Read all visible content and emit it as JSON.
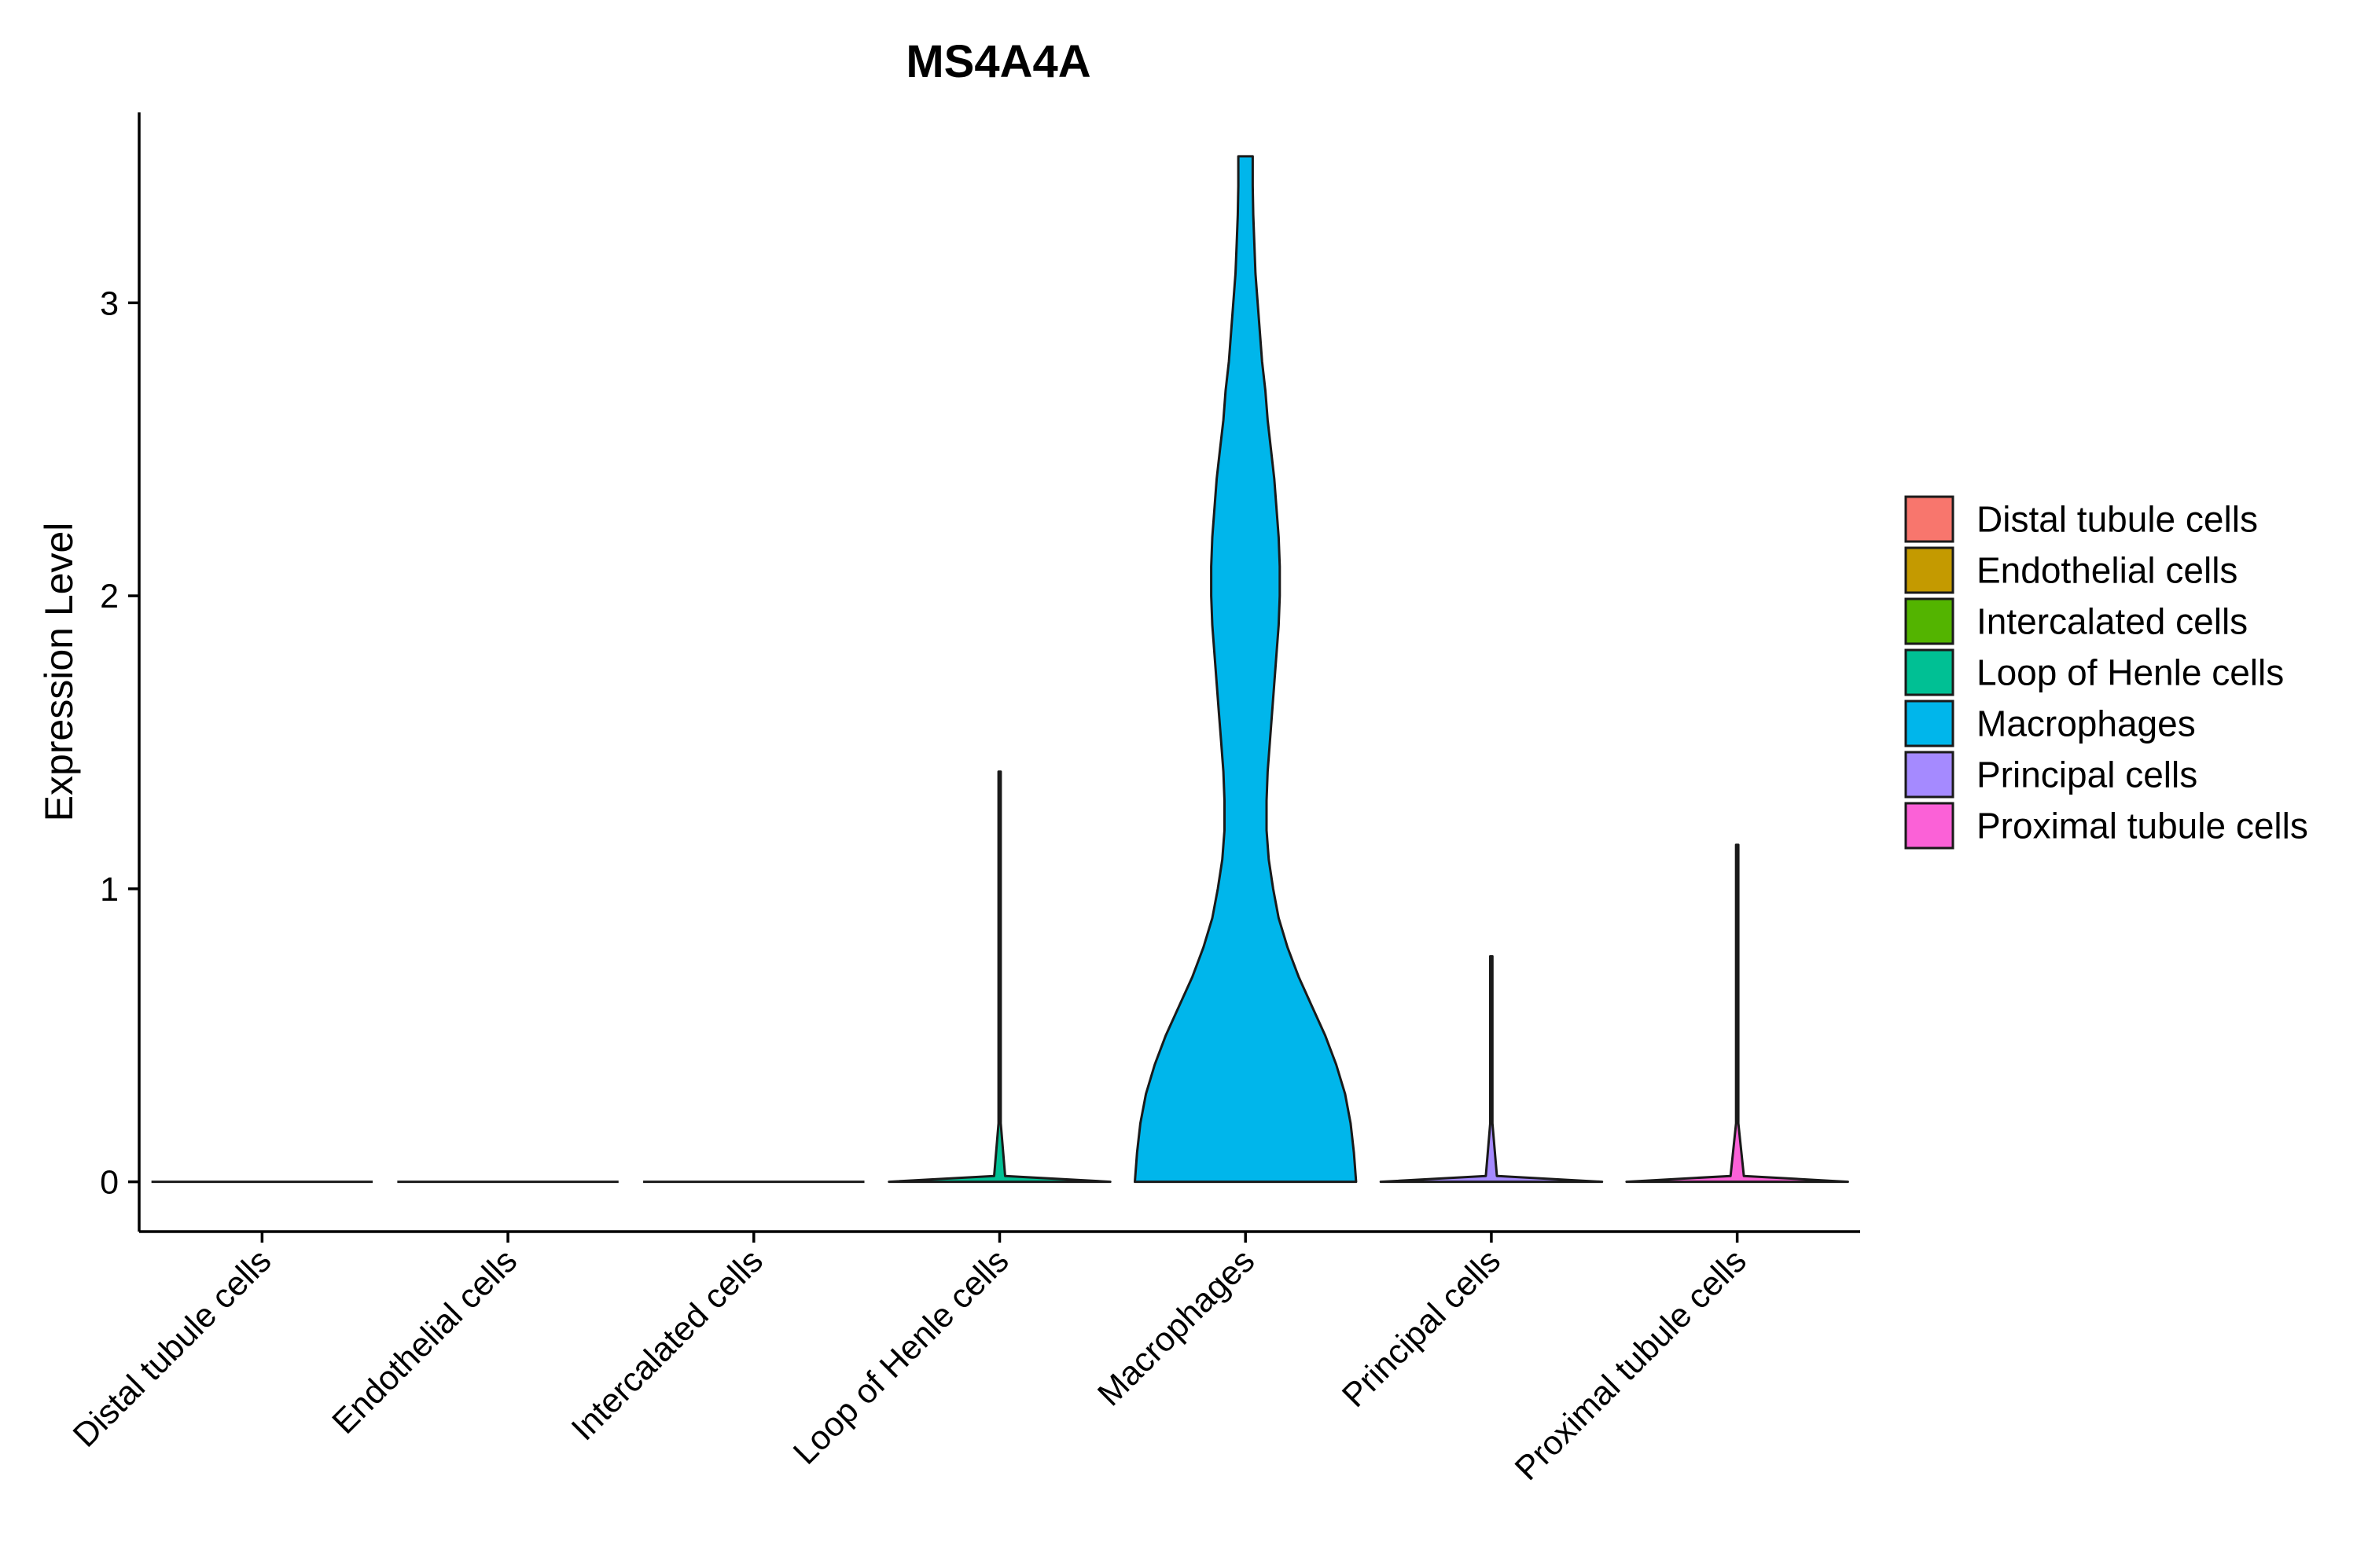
{
  "chart_data": {
    "type": "violin",
    "title": "MS4A4A",
    "xlabel": "",
    "ylabel": "Expression Level",
    "ylim": [
      -0.17,
      3.65
    ],
    "yticks": [
      0,
      1,
      2,
      3
    ],
    "yticklabels": [
      "0",
      "1",
      "2",
      "3"
    ],
    "grid": false,
    "legend_position": "right",
    "categories": [
      "Distal tubule cells",
      "Endothelial cells",
      "Intercalated cells",
      "Loop of Henle cells",
      "Macrophages",
      "Principal cells",
      "Proximal tubule cells"
    ],
    "colors": [
      "#F8766D",
      "#C49A00",
      "#53B400",
      "#00C094",
      "#00B6EB",
      "#A58AFF",
      "#FB61D7"
    ],
    "series": [
      {
        "category": "Distal tubule cells",
        "max": 0.0,
        "profile": [
          [
            0,
            1.0
          ]
        ]
      },
      {
        "category": "Endothelial cells",
        "max": 0.0,
        "profile": [
          [
            0,
            1.0
          ]
        ]
      },
      {
        "category": "Intercalated cells",
        "max": 0.0,
        "profile": [
          [
            0,
            1.0
          ]
        ]
      },
      {
        "category": "Loop of Henle cells",
        "max": 1.4,
        "profile": [
          [
            0,
            1.0
          ],
          [
            0.02,
            0.05
          ],
          [
            0.2,
            0.01
          ],
          [
            1.4,
            0.01
          ]
        ]
      },
      {
        "category": "Macrophages",
        "max": 3.5,
        "profile": [
          [
            0.0,
            1.0
          ],
          [
            0.1,
            0.98
          ],
          [
            0.2,
            0.95
          ],
          [
            0.3,
            0.9
          ],
          [
            0.4,
            0.82
          ],
          [
            0.5,
            0.72
          ],
          [
            0.6,
            0.6
          ],
          [
            0.7,
            0.48
          ],
          [
            0.8,
            0.38
          ],
          [
            0.9,
            0.3
          ],
          [
            1.0,
            0.25
          ],
          [
            1.1,
            0.21
          ],
          [
            1.2,
            0.19
          ],
          [
            1.3,
            0.19
          ],
          [
            1.4,
            0.2
          ],
          [
            1.5,
            0.22
          ],
          [
            1.6,
            0.24
          ],
          [
            1.7,
            0.26
          ],
          [
            1.8,
            0.28
          ],
          [
            1.9,
            0.3
          ],
          [
            2.0,
            0.31
          ],
          [
            2.1,
            0.31
          ],
          [
            2.2,
            0.3
          ],
          [
            2.3,
            0.28
          ],
          [
            2.4,
            0.26
          ],
          [
            2.5,
            0.23
          ],
          [
            2.6,
            0.2
          ],
          [
            2.7,
            0.18
          ],
          [
            2.8,
            0.15
          ],
          [
            2.9,
            0.13
          ],
          [
            3.0,
            0.11
          ],
          [
            3.1,
            0.09
          ],
          [
            3.2,
            0.08
          ],
          [
            3.3,
            0.07
          ],
          [
            3.4,
            0.065
          ],
          [
            3.5,
            0.065
          ]
        ]
      },
      {
        "category": "Principal cells",
        "max": 0.77,
        "profile": [
          [
            0,
            1.0
          ],
          [
            0.02,
            0.05
          ],
          [
            0.2,
            0.01
          ],
          [
            0.77,
            0.01
          ]
        ]
      },
      {
        "category": "Proximal tubule cells",
        "max": 1.15,
        "profile": [
          [
            0,
            1.0
          ],
          [
            0.02,
            0.06
          ],
          [
            0.2,
            0.01
          ],
          [
            1.15,
            0.01
          ]
        ]
      }
    ],
    "legend": [
      "Distal tubule cells",
      "Endothelial cells",
      "Intercalated cells",
      "Loop of Henle cells",
      "Macrophages",
      "Principal cells",
      "Proximal tubule cells"
    ]
  }
}
